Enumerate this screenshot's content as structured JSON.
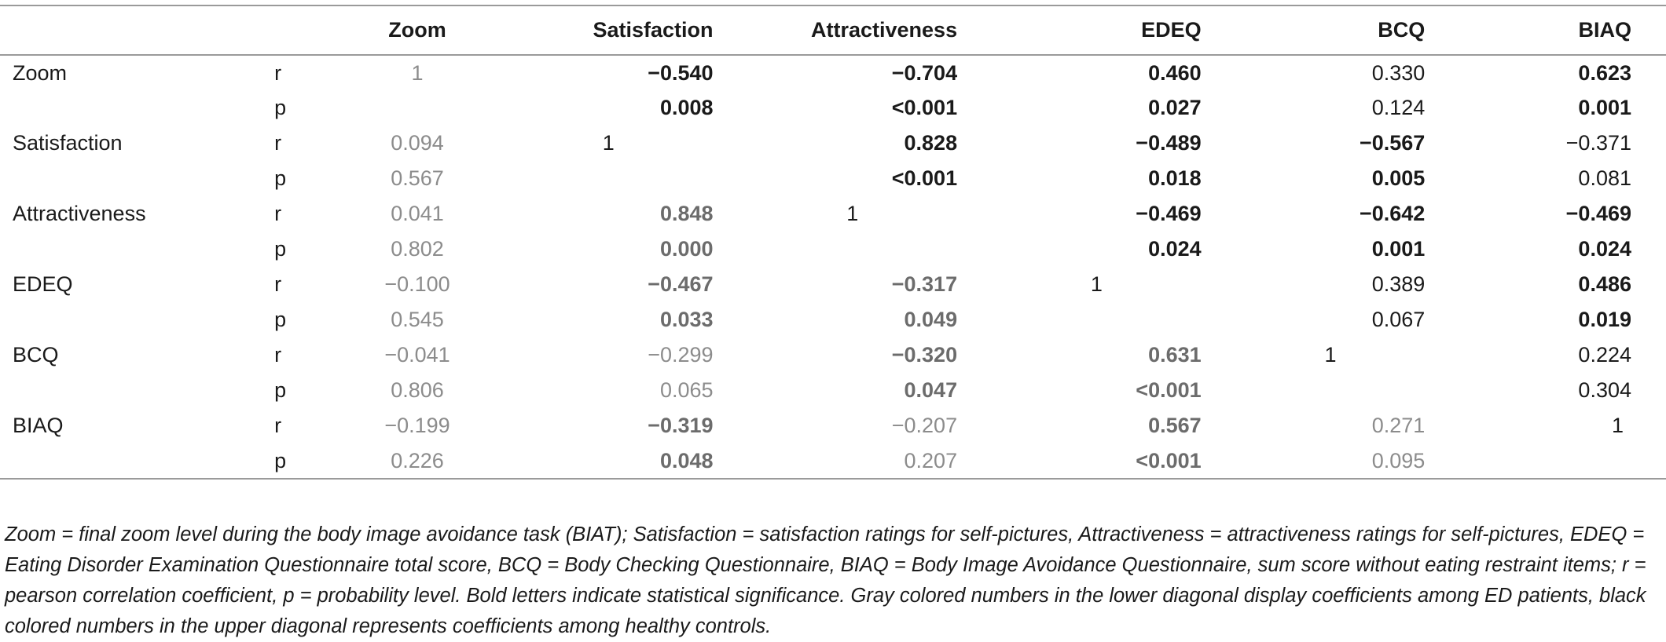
{
  "header": {
    "columns": [
      "Zoom",
      "Satisfaction",
      "Attractiveness",
      "EDEQ",
      "BCQ",
      "BIAQ"
    ]
  },
  "rows": [
    {
      "label": "Zoom",
      "r": [
        {
          "v": "1",
          "s": "diag"
        },
        {
          "v": "−0.540",
          "s": "blackb"
        },
        {
          "v": "−0.704",
          "s": "blackb"
        },
        {
          "v": "0.460",
          "s": "blackb"
        },
        {
          "v": "0.330",
          "s": "black"
        },
        {
          "v": "0.623",
          "s": "blackb"
        }
      ],
      "p": [
        {
          "v": "",
          "s": "diag"
        },
        {
          "v": "0.008",
          "s": "blackb"
        },
        {
          "v": "<0.001",
          "s": "blackb"
        },
        {
          "v": "0.027",
          "s": "blackb"
        },
        {
          "v": "0.124",
          "s": "black"
        },
        {
          "v": "0.001",
          "s": "blackb"
        }
      ]
    },
    {
      "label": "Satisfaction",
      "r": [
        {
          "v": "0.094",
          "s": "gray"
        },
        {
          "v": "1",
          "s": "diag"
        },
        {
          "v": "0.828",
          "s": "blackb"
        },
        {
          "v": "−0.489",
          "s": "blackb"
        },
        {
          "v": "−0.567",
          "s": "blackb"
        },
        {
          "v": "−0.371",
          "s": "black"
        }
      ],
      "p": [
        {
          "v": "0.567",
          "s": "gray"
        },
        {
          "v": "",
          "s": "diag"
        },
        {
          "v": "<0.001",
          "s": "blackb"
        },
        {
          "v": "0.018",
          "s": "blackb"
        },
        {
          "v": "0.005",
          "s": "blackb"
        },
        {
          "v": "0.081",
          "s": "black"
        }
      ]
    },
    {
      "label": "Attractiveness",
      "r": [
        {
          "v": "0.041",
          "s": "gray"
        },
        {
          "v": "0.848",
          "s": "grayb"
        },
        {
          "v": "1",
          "s": "diag"
        },
        {
          "v": "−0.469",
          "s": "blackb"
        },
        {
          "v": "−0.642",
          "s": "blackb"
        },
        {
          "v": "−0.469",
          "s": "blackb"
        }
      ],
      "p": [
        {
          "v": "0.802",
          "s": "gray"
        },
        {
          "v": "0.000",
          "s": "grayb"
        },
        {
          "v": "",
          "s": "diag"
        },
        {
          "v": "0.024",
          "s": "blackb"
        },
        {
          "v": "0.001",
          "s": "blackb"
        },
        {
          "v": "0.024",
          "s": "blackb"
        }
      ]
    },
    {
      "label": "EDEQ",
      "r": [
        {
          "v": "−0.100",
          "s": "gray"
        },
        {
          "v": "−0.467",
          "s": "grayb"
        },
        {
          "v": "−0.317",
          "s": "grayb"
        },
        {
          "v": "1",
          "s": "diag"
        },
        {
          "v": "0.389",
          "s": "black"
        },
        {
          "v": "0.486",
          "s": "blackb"
        }
      ],
      "p": [
        {
          "v": "0.545",
          "s": "gray"
        },
        {
          "v": "0.033",
          "s": "grayb"
        },
        {
          "v": "0.049",
          "s": "grayb"
        },
        {
          "v": "",
          "s": "diag"
        },
        {
          "v": "0.067",
          "s": "black"
        },
        {
          "v": "0.019",
          "s": "blackb"
        }
      ]
    },
    {
      "label": "BCQ",
      "r": [
        {
          "v": "−0.041",
          "s": "gray"
        },
        {
          "v": "−0.299",
          "s": "gray"
        },
        {
          "v": "−0.320",
          "s": "grayb"
        },
        {
          "v": "0.631",
          "s": "grayb"
        },
        {
          "v": "1",
          "s": "diag"
        },
        {
          "v": "0.224",
          "s": "black"
        }
      ],
      "p": [
        {
          "v": "0.806",
          "s": "gray"
        },
        {
          "v": "0.065",
          "s": "gray"
        },
        {
          "v": "0.047",
          "s": "grayb"
        },
        {
          "v": "<0.001",
          "s": "grayb"
        },
        {
          "v": "",
          "s": "diag"
        },
        {
          "v": "0.304",
          "s": "black"
        }
      ]
    },
    {
      "label": "BIAQ",
      "r": [
        {
          "v": "−0.199",
          "s": "gray"
        },
        {
          "v": "−0.319",
          "s": "grayb"
        },
        {
          "v": "−0.207",
          "s": "gray"
        },
        {
          "v": "0.567",
          "s": "grayb"
        },
        {
          "v": "0.271",
          "s": "gray"
        },
        {
          "v": "1",
          "s": "diag"
        }
      ],
      "p": [
        {
          "v": "0.226",
          "s": "gray"
        },
        {
          "v": "0.048",
          "s": "grayb"
        },
        {
          "v": "0.207",
          "s": "gray"
        },
        {
          "v": "<0.001",
          "s": "grayb"
        },
        {
          "v": "0.095",
          "s": "gray"
        },
        {
          "v": "",
          "s": "diag"
        }
      ]
    }
  ],
  "stat_labels": {
    "r": "r",
    "p": "p"
  },
  "note": "Zoom = final zoom level during the body image avoidance task (BIAT); Satisfaction = satisfaction ratings for self-pictures, Attractiveness = attractiveness ratings for self-pictures, EDEQ = Eating Disorder Examination Questionnaire total score, BCQ = Body Checking Questionnaire, BIAQ = Body Image Avoidance Questionnaire, sum score without eating restraint items; r = pearson correlation coefficient, p = probability level. Bold letters indicate statistical significance. Gray colored numbers in the lower diagonal display coefficients among ED patients, black colored numbers in the upper diagonal represents coefficients among healthy controls."
}
